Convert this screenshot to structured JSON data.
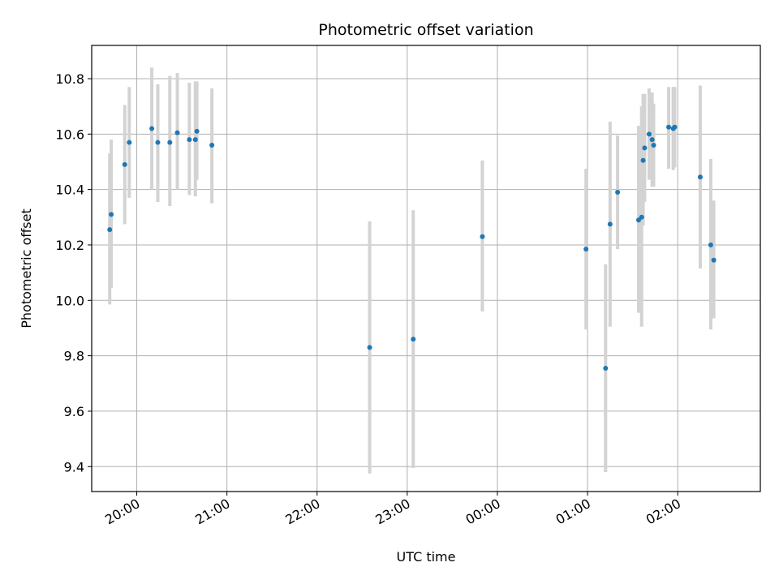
{
  "chart_data": {
    "type": "scatter",
    "title": "Photometric offset variation",
    "xlabel": "UTC time",
    "ylabel": "Photometric offset",
    "x_type": "time",
    "xlim": [
      "19:30",
      "26:55"
    ],
    "ylim": [
      9.31,
      10.92
    ],
    "x_ticks": [
      "20:00",
      "21:00",
      "22:00",
      "23:00",
      "00:00",
      "01:00",
      "02:00"
    ],
    "y_ticks": [
      "9.4",
      "9.6",
      "9.8",
      "10.0",
      "10.2",
      "10.4",
      "10.6",
      "10.8"
    ],
    "grid": true,
    "colors": {
      "point": "#1f77b4",
      "error_bar": "#d3d3d3",
      "grid": "#b0b0b0",
      "axis": "#000000"
    },
    "series": [
      {
        "points": [
          {
            "x": "19:42",
            "y": 10.255,
            "ylo": 9.985,
            "yhi": 10.53
          },
          {
            "x": "19:43",
            "y": 10.31,
            "ylo": 10.045,
            "yhi": 10.58
          },
          {
            "x": "19:52",
            "y": 10.49,
            "ylo": 10.275,
            "yhi": 10.705
          },
          {
            "x": "19:55",
            "y": 10.57,
            "ylo": 10.37,
            "yhi": 10.77
          },
          {
            "x": "20:10",
            "y": 10.62,
            "ylo": 10.4,
            "yhi": 10.84
          },
          {
            "x": "20:14",
            "y": 10.57,
            "ylo": 10.355,
            "yhi": 10.78
          },
          {
            "x": "20:22",
            "y": 10.57,
            "ylo": 10.34,
            "yhi": 10.81
          },
          {
            "x": "20:27",
            "y": 10.605,
            "ylo": 10.4,
            "yhi": 10.82
          },
          {
            "x": "20:35",
            "y": 10.58,
            "ylo": 10.38,
            "yhi": 10.785
          },
          {
            "x": "20:39",
            "y": 10.58,
            "ylo": 10.375,
            "yhi": 10.79
          },
          {
            "x": "20:40",
            "y": 10.61,
            "ylo": 10.435,
            "yhi": 10.79
          },
          {
            "x": "20:50",
            "y": 10.56,
            "ylo": 10.35,
            "yhi": 10.765
          },
          {
            "x": "22:35",
            "y": 9.83,
            "ylo": 9.375,
            "yhi": 10.285
          },
          {
            "x": "23:04",
            "y": 9.86,
            "ylo": 9.395,
            "yhi": 10.325
          },
          {
            "x": "23:50",
            "y": 10.23,
            "ylo": 9.96,
            "yhi": 10.505
          },
          {
            "x": "24:59",
            "y": 10.185,
            "ylo": 9.895,
            "yhi": 10.475
          },
          {
            "x": "25:12",
            "y": 9.755,
            "ylo": 9.38,
            "yhi": 10.13
          },
          {
            "x": "25:15",
            "y": 10.275,
            "ylo": 9.905,
            "yhi": 10.645
          },
          {
            "x": "25:20",
            "y": 10.39,
            "ylo": 10.185,
            "yhi": 10.595
          },
          {
            "x": "25:34",
            "y": 10.29,
            "ylo": 9.955,
            "yhi": 10.63
          },
          {
            "x": "25:36",
            "y": 10.3,
            "ylo": 9.905,
            "yhi": 10.7
          },
          {
            "x": "25:37",
            "y": 10.505,
            "ylo": 10.27,
            "yhi": 10.745
          },
          {
            "x": "25:38",
            "y": 10.55,
            "ylo": 10.355,
            "yhi": 10.745
          },
          {
            "x": "25:41",
            "y": 10.6,
            "ylo": 10.435,
            "yhi": 10.765
          },
          {
            "x": "25:43",
            "y": 10.58,
            "ylo": 10.41,
            "yhi": 10.75
          },
          {
            "x": "25:44",
            "y": 10.56,
            "ylo": 10.41,
            "yhi": 10.71
          },
          {
            "x": "25:54",
            "y": 10.625,
            "ylo": 10.475,
            "yhi": 10.77
          },
          {
            "x": "25:57",
            "y": 10.62,
            "ylo": 10.47,
            "yhi": 10.77
          },
          {
            "x": "25:58",
            "y": 10.625,
            "ylo": 10.48,
            "yhi": 10.77
          },
          {
            "x": "26:15",
            "y": 10.445,
            "ylo": 10.115,
            "yhi": 10.775
          },
          {
            "x": "26:22",
            "y": 10.2,
            "ylo": 9.895,
            "yhi": 10.51
          },
          {
            "x": "26:24",
            "y": 10.145,
            "ylo": 9.935,
            "yhi": 10.36
          }
        ]
      }
    ]
  }
}
